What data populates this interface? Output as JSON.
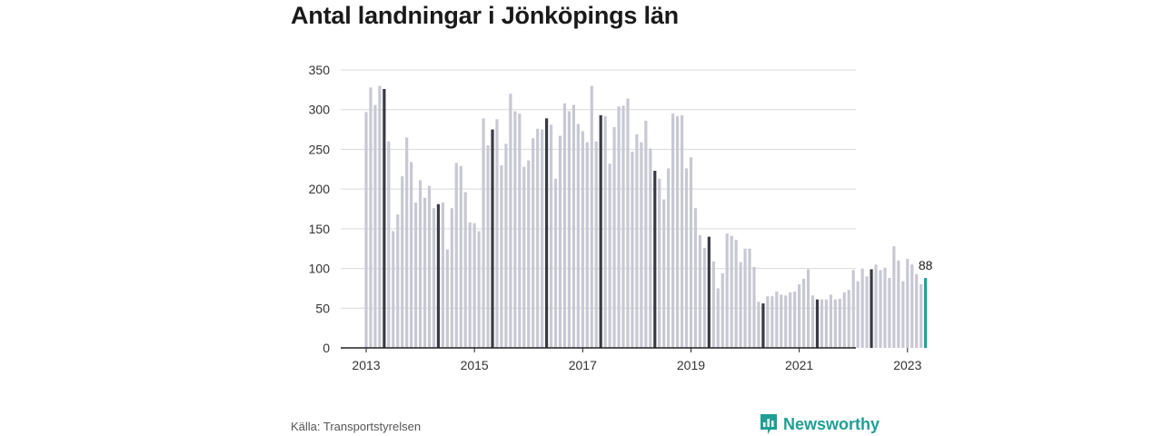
{
  "title": "Antal landningar i Jönköpings län",
  "source": "Källa: Transportstyrelsen",
  "brand": {
    "name": "Newsworthy",
    "icon": "bar-chart-bubble-icon"
  },
  "colors": {
    "bar": "#c8c8d4",
    "highlight": "#3a3a45",
    "latest": "#1aa394",
    "grid": "#d9d9d9",
    "axis": "#222222",
    "brand": "#1f9f94"
  },
  "chart_data": {
    "type": "bar",
    "title": "Antal landningar i Jönköpings län",
    "xlabel": "",
    "ylabel": "",
    "ylim": [
      0,
      350
    ],
    "yticks": [
      0,
      50,
      100,
      150,
      200,
      250,
      300,
      350
    ],
    "xticks": [
      "2013",
      "2015",
      "2017",
      "2019",
      "2021",
      "2023"
    ],
    "grid": true,
    "start": "2013-01",
    "latest_label": "88",
    "highlight_month": "May",
    "values": [
      297,
      328,
      306,
      330,
      326,
      260,
      147,
      168,
      216,
      265,
      234,
      183,
      211,
      189,
      204,
      176,
      181,
      183,
      124,
      176,
      233,
      229,
      196,
      158,
      157,
      147,
      289,
      255,
      275,
      288,
      230,
      257,
      320,
      298,
      295,
      228,
      236,
      264,
      276,
      275,
      289,
      281,
      213,
      267,
      308,
      298,
      306,
      282,
      273,
      259,
      330,
      260,
      293,
      292,
      232,
      278,
      304,
      305,
      314,
      247,
      269,
      259,
      286,
      251,
      223,
      213,
      187,
      226,
      295,
      292,
      293,
      226,
      240,
      176,
      142,
      126,
      140,
      109,
      75,
      94,
      144,
      141,
      136,
      108,
      125,
      125,
      102,
      58,
      56,
      65,
      65,
      71,
      67,
      66,
      70,
      71,
      80,
      87,
      99,
      66,
      61,
      61,
      61,
      67,
      61,
      62,
      70,
      73,
      98,
      84,
      100,
      90,
      99,
      105,
      98,
      101,
      88,
      128,
      110,
      84,
      112,
      105,
      93,
      80,
      88
    ]
  }
}
